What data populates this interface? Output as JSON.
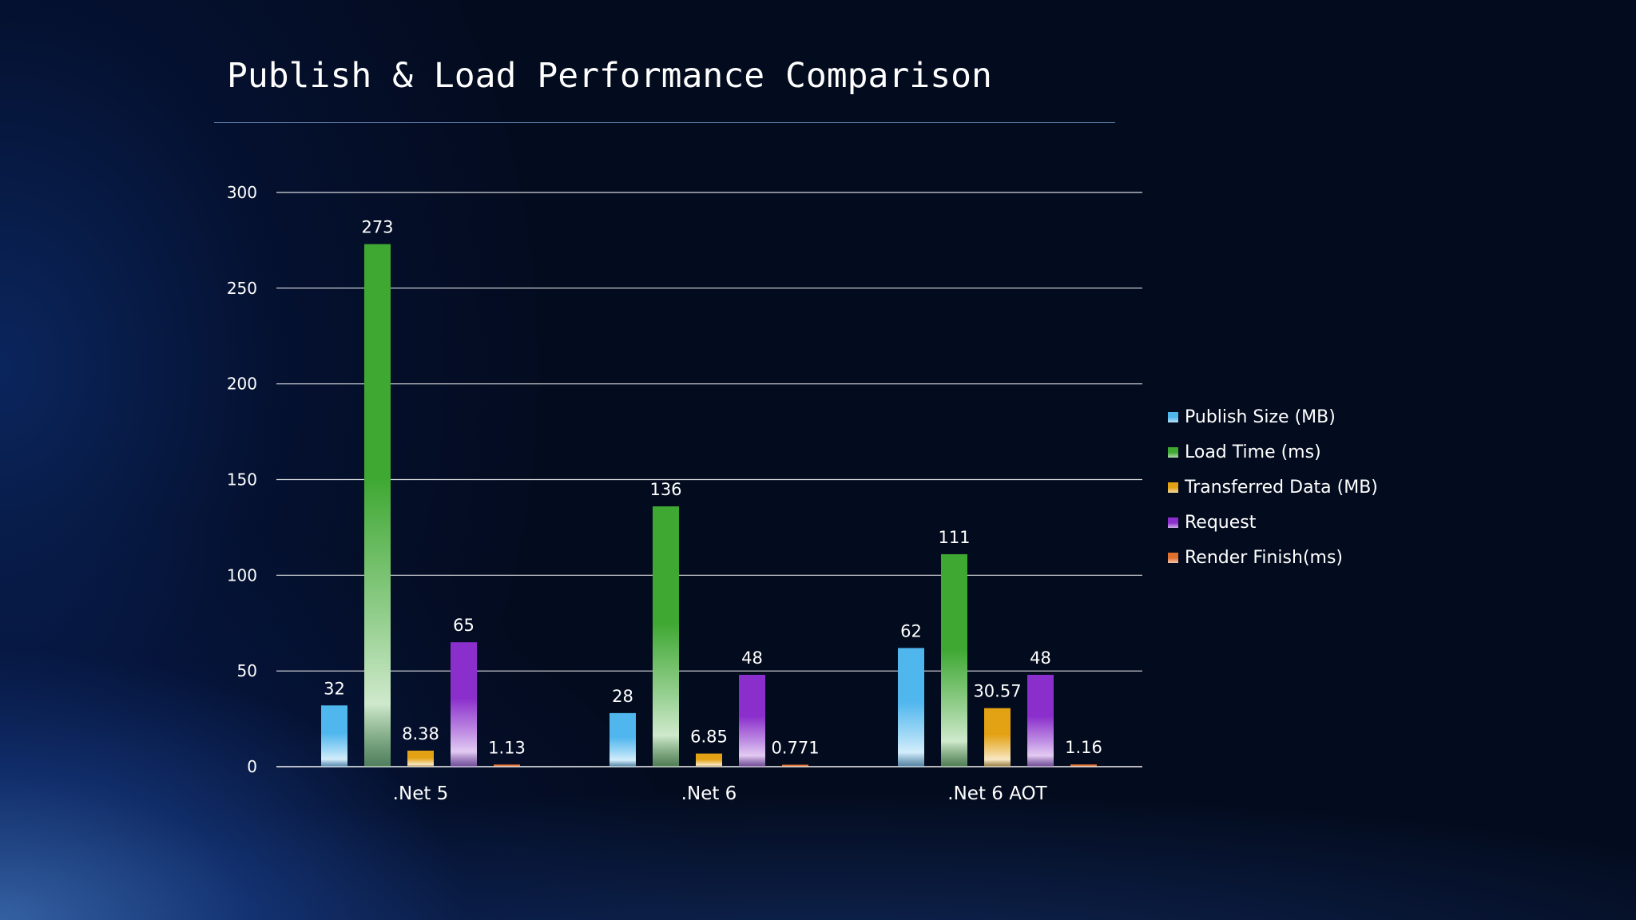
{
  "title": "Publish & Load Performance Comparison",
  "chart_data": {
    "type": "bar",
    "title": "Publish & Load Performance Comparison",
    "categories": [
      ".Net 5",
      ".Net 6",
      ".Net 6 AOT"
    ],
    "series": [
      {
        "name": "Publish Size (MB)",
        "values": [
          32,
          28,
          62
        ],
        "labels": [
          "32",
          "28",
          "62"
        ],
        "color": "#4fb6ee"
      },
      {
        "name": "Load Time (ms)",
        "values": [
          273,
          136,
          111
        ],
        "labels": [
          "273",
          "136",
          "111"
        ],
        "color": "#3fa833"
      },
      {
        "name": "Transferred Data (MB)",
        "values": [
          8.38,
          6.85,
          30.57
        ],
        "labels": [
          "8.38",
          "6.85",
          "30.57"
        ],
        "color": "#e3a214"
      },
      {
        "name": "Request",
        "values": [
          65,
          48,
          48
        ],
        "labels": [
          "65",
          "48",
          "48"
        ],
        "color": "#8b2fcc"
      },
      {
        "name": "Render Finish(ms)",
        "values": [
          1.13,
          0.771,
          1.16
        ],
        "labels": [
          "1.13",
          "0.771",
          "1.16"
        ],
        "color": "#e0702e"
      }
    ],
    "ylim": [
      0,
      300
    ],
    "yticks": [
      0,
      50,
      100,
      150,
      200,
      250,
      300
    ],
    "grid": true,
    "legend": "right"
  }
}
